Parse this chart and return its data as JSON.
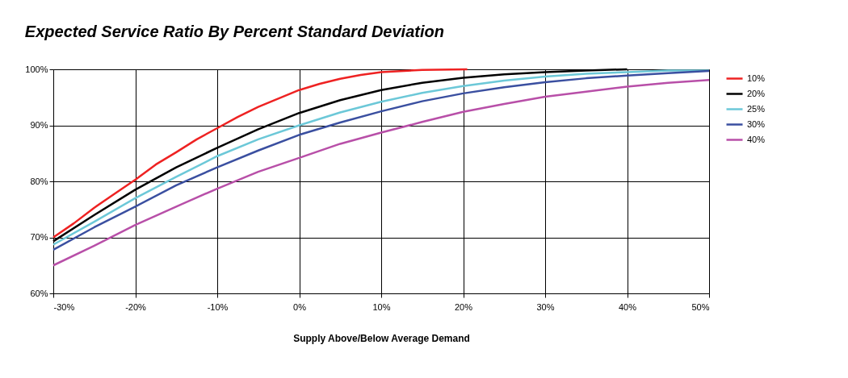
{
  "chart_data": {
    "type": "line",
    "title": "Expected Service Ratio By Percent Standard Deviation",
    "xlabel": "Supply Above/Below Average Demand",
    "xlim": [
      -30,
      50
    ],
    "ylim": [
      60,
      100
    ],
    "xticks": [
      {
        "value": -30,
        "label": "-30%"
      },
      {
        "value": -20,
        "label": "-20%"
      },
      {
        "value": -10,
        "label": "-10%"
      },
      {
        "value": 0,
        "label": "0%"
      },
      {
        "value": 10,
        "label": "10%"
      },
      {
        "value": 20,
        "label": "20%"
      },
      {
        "value": 30,
        "label": "30%"
      },
      {
        "value": 40,
        "label": "40%"
      },
      {
        "value": 50,
        "label": "50%"
      }
    ],
    "yticks": [
      {
        "value": 60,
        "label": "60%"
      },
      {
        "value": 70,
        "label": "70%"
      },
      {
        "value": 80,
        "label": "80%"
      },
      {
        "value": 90,
        "label": "90%"
      },
      {
        "value": 100,
        "label": "100%"
      }
    ],
    "grid": true,
    "legend": "right",
    "line_style": "solid",
    "series": [
      {
        "name": "10%",
        "color": "#ee2222",
        "x": [
          -30,
          -27.5,
          -25,
          -22.5,
          -20,
          -17.5,
          -15,
          -12.5,
          -10,
          -7.5,
          -5,
          -2.5,
          0,
          2.5,
          5,
          7.5,
          10,
          15,
          20.5
        ],
        "values": [
          70,
          72.5,
          75.3,
          77.8,
          80.3,
          83,
          85.2,
          87.5,
          89.5,
          91.5,
          93.3,
          94.8,
          96.3,
          97.4,
          98.3,
          99,
          99.5,
          99.9,
          100
        ]
      },
      {
        "name": "20%",
        "color": "#000000",
        "x": [
          -30,
          -25,
          -20,
          -15,
          -10,
          -5,
          0,
          5,
          10,
          15,
          20,
          25,
          30,
          35,
          40
        ],
        "values": [
          69.3,
          74,
          78.5,
          82.5,
          86,
          89.3,
          92.2,
          94.5,
          96.3,
          97.6,
          98.5,
          99.1,
          99.5,
          99.8,
          100
        ]
      },
      {
        "name": "25%",
        "color": "#6cc8d8",
        "x": [
          -30,
          -25,
          -20,
          -15,
          -10,
          -5,
          0,
          5,
          10,
          15,
          20,
          25,
          30,
          35,
          40,
          45,
          50
        ],
        "values": [
          68.7,
          72.8,
          77,
          80.8,
          84.5,
          87.5,
          90,
          92.3,
          94.2,
          95.8,
          97,
          98,
          98.7,
          99.2,
          99.5,
          99.8,
          99.8
        ]
      },
      {
        "name": "30%",
        "color": "#3a4fa0",
        "x": [
          -30,
          -25,
          -20,
          -15,
          -10,
          -5,
          0,
          5,
          10,
          15,
          20,
          25,
          30,
          35,
          40,
          45,
          50
        ],
        "values": [
          67.8,
          71.8,
          75.5,
          79.3,
          82.5,
          85.5,
          88.3,
          90.5,
          92.5,
          94.3,
          95.7,
          96.8,
          97.7,
          98.4,
          98.9,
          99.3,
          99.7
        ]
      },
      {
        "name": "40%",
        "color": "#b84fa8",
        "x": [
          -30,
          -25,
          -20,
          -15,
          -10,
          -5,
          0,
          5,
          10,
          15,
          20,
          25,
          30,
          35,
          40,
          45,
          50
        ],
        "values": [
          65,
          68.5,
          72.2,
          75.5,
          78.7,
          81.7,
          84.2,
          86.7,
          88.7,
          90.6,
          92.4,
          93.8,
          95.1,
          96,
          96.9,
          97.6,
          98.1
        ]
      }
    ]
  }
}
